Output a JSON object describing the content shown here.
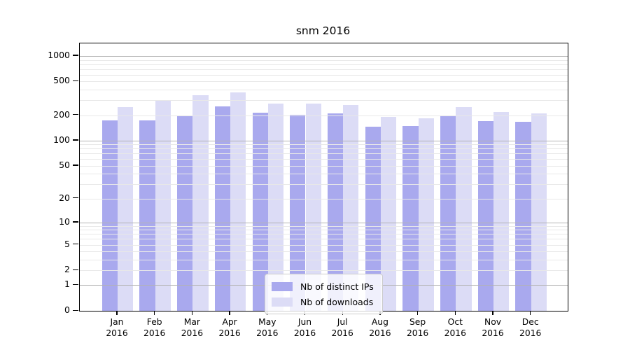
{
  "title": "snm 2016",
  "chart_data": {
    "type": "bar",
    "title": "snm 2016",
    "y_scale": "log1p",
    "grid": true,
    "legend_position": "lower-center",
    "x_year": "2016",
    "categories": [
      "Jan",
      "Feb",
      "Mar",
      "Apr",
      "May",
      "Jun",
      "Jul",
      "Aug",
      "Sep",
      "Oct",
      "Nov",
      "Dec"
    ],
    "series": [
      {
        "name": "Nb of distinct IPs",
        "color": "#a9a9ee",
        "values": [
          175,
          175,
          196,
          253,
          213,
          203,
          212,
          145,
          150,
          193,
          170,
          168
        ]
      },
      {
        "name": "Nb of downloads",
        "color": "#dcdcf6",
        "values": [
          251,
          300,
          347,
          374,
          276,
          277,
          266,
          190,
          183,
          251,
          219,
          210
        ]
      }
    ],
    "y_tick_values": [
      1000,
      500,
      200,
      100,
      50,
      20,
      10,
      5,
      2,
      1,
      0
    ],
    "y_major_gridlines": [
      1,
      10,
      100,
      1000
    ],
    "y_minor_gridlines": [
      2,
      3,
      4,
      5,
      6,
      7,
      8,
      9,
      20,
      30,
      40,
      50,
      60,
      70,
      80,
      90,
      200,
      300,
      400,
      500,
      600,
      700,
      800,
      900
    ],
    "ylim": [
      0,
      1390
    ]
  },
  "colors": {
    "ips_bar": "#a9a9ee",
    "downloads_bar": "#dcdcf6",
    "major_grid": "#b3b3b3",
    "minor_grid": "#e8e8e8",
    "axis": "#000000",
    "legend_border": "#cccccc"
  }
}
